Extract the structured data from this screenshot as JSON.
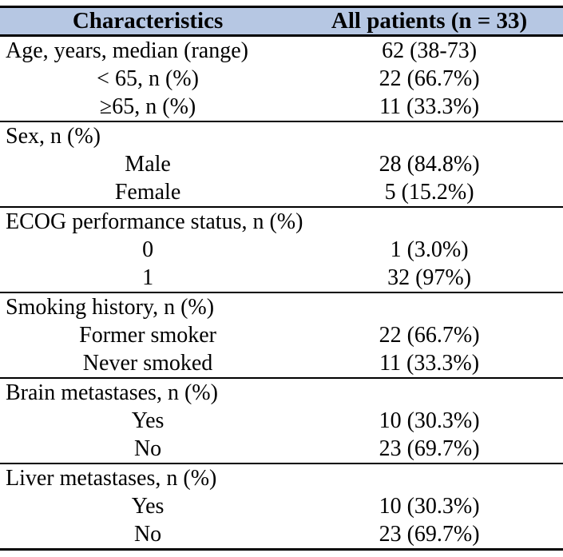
{
  "page": {
    "background": "#ffffff"
  },
  "table": {
    "style": {
      "header_bg": "#b6c7e3",
      "border_color": "#000000",
      "text_color": "#000000"
    },
    "title_row": {
      "characteristics": "Characteristics",
      "all_patients": "All patients (n = 33)"
    },
    "sections": [
      {
        "rows": [
          {
            "label": "Age, years, median (range)",
            "value": "62 (38-73)",
            "indent": false
          },
          {
            "label": "< 65, n (%)",
            "value": "22 (66.7%)",
            "indent": true
          },
          {
            "label": "≥65, n (%)",
            "value": "11 (33.3%)",
            "indent": true
          }
        ]
      },
      {
        "rows": [
          {
            "label": "Sex, n (%)",
            "value": "",
            "indent": false
          },
          {
            "label": "Male",
            "value": "28 (84.8%)",
            "indent": true
          },
          {
            "label": "Female",
            "value": "5 (15.2%)",
            "indent": true
          }
        ]
      },
      {
        "rows": [
          {
            "label": "ECOG performance status, n (%)",
            "value": "",
            "indent": false
          },
          {
            "label": "0",
            "value": "1 (3.0%)",
            "indent": true
          },
          {
            "label": "1",
            "value": "32 (97%)",
            "indent": true
          }
        ]
      },
      {
        "rows": [
          {
            "label": "Smoking history, n (%)",
            "value": "",
            "indent": false
          },
          {
            "label": "Former smoker",
            "value": "22 (66.7%)",
            "indent": true
          },
          {
            "label": "Never smoked",
            "value": "11 (33.3%)",
            "indent": true
          }
        ]
      },
      {
        "rows": [
          {
            "label": "Brain metastases, n (%)",
            "value": "",
            "indent": false
          },
          {
            "label": "Yes",
            "value": "10 (30.3%)",
            "indent": true
          },
          {
            "label": "No",
            "value": "23 (69.7%)",
            "indent": true
          }
        ]
      },
      {
        "rows": [
          {
            "label": "Liver metastases, n (%)",
            "value": "",
            "indent": false
          },
          {
            "label": "Yes",
            "value": "10 (30.3%)",
            "indent": true
          },
          {
            "label": "No",
            "value": "23 (69.7%)",
            "indent": true
          }
        ]
      }
    ]
  }
}
